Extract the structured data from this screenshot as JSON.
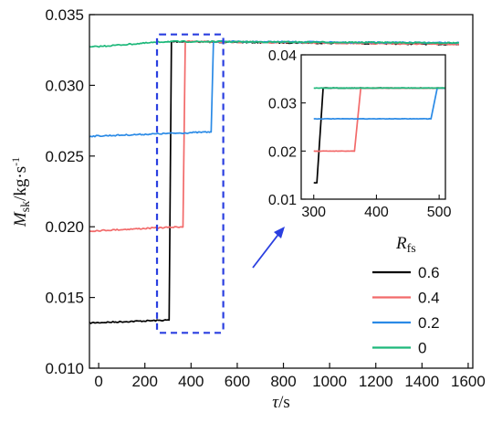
{
  "chart_data": {
    "type": "line",
    "xlabel": {
      "symbol": "τ",
      "unit": "/s"
    },
    "ylabel": {
      "symbol": "M",
      "subscript": "sk",
      "unit": "/kg·s",
      "superscript": "-1"
    },
    "xlim": [
      -40,
      1620
    ],
    "ylim": [
      0.01,
      0.035
    ],
    "xticks": [
      0,
      200,
      400,
      600,
      800,
      1000,
      1200,
      1400,
      1600
    ],
    "yticks": [
      0.01,
      0.015,
      0.02,
      0.025,
      0.03,
      0.035
    ],
    "ytick_labels": [
      "0.010",
      "0.015",
      "0.020",
      "0.025",
      "0.030",
      "0.035"
    ],
    "legend": {
      "title": {
        "symbol": "R",
        "subscript": "fs"
      },
      "placement": "bottom-right",
      "entries": [
        "0.6",
        "0.4",
        "0.2",
        "0"
      ]
    },
    "series": [
      {
        "name": "0.6",
        "color": "#000000",
        "x": [
          -40,
          300,
          305,
          315,
          1560
        ],
        "y": [
          0.0132,
          0.0134,
          0.0134,
          0.0331,
          0.0329
        ]
      },
      {
        "name": "0.4",
        "color": "#f26a6a",
        "x": [
          -40,
          360,
          365,
          375,
          1560
        ],
        "y": [
          0.0197,
          0.02,
          0.02,
          0.0331,
          0.0329
        ]
      },
      {
        "name": "0.2",
        "color": "#2a8ae6",
        "x": [
          -40,
          480,
          487,
          497,
          1560
        ],
        "y": [
          0.0264,
          0.0267,
          0.0267,
          0.0331,
          0.033
        ]
      },
      {
        "name": "0",
        "color": "#1db87a",
        "x": [
          -40,
          300,
          1560
        ],
        "y": [
          0.0327,
          0.0331,
          0.033
        ]
      }
    ],
    "highlight_box": {
      "x": [
        300,
        500
      ],
      "y": [
        0.0125,
        0.0336
      ],
      "color": "#2a3fe0"
    },
    "inset": {
      "xlim": [
        280,
        510
      ],
      "ylim": [
        0.01,
        0.04
      ],
      "xticks": [
        300,
        400,
        500
      ],
      "yticks": [
        0.01,
        0.02,
        0.03,
        0.04
      ],
      "ytick_labels": [
        "0.01",
        "0.02",
        "0.03",
        "0.04"
      ],
      "series": [
        {
          "name": "0.6",
          "color": "#000000",
          "x": [
            300,
            305,
            315,
            510
          ],
          "y": [
            0.0134,
            0.0134,
            0.0331,
            0.0331
          ]
        },
        {
          "name": "0.4",
          "color": "#f26a6a",
          "x": [
            300,
            360,
            365,
            375,
            510
          ],
          "y": [
            0.02,
            0.02,
            0.02,
            0.0331,
            0.0331
          ]
        },
        {
          "name": "0.2",
          "color": "#2a8ae6",
          "x": [
            300,
            480,
            487,
            497,
            510
          ],
          "y": [
            0.0267,
            0.0267,
            0.0267,
            0.0331,
            0.0331
          ]
        },
        {
          "name": "0",
          "color": "#1db87a",
          "x": [
            300,
            510
          ],
          "y": [
            0.0331,
            0.0331
          ]
        }
      ]
    }
  }
}
